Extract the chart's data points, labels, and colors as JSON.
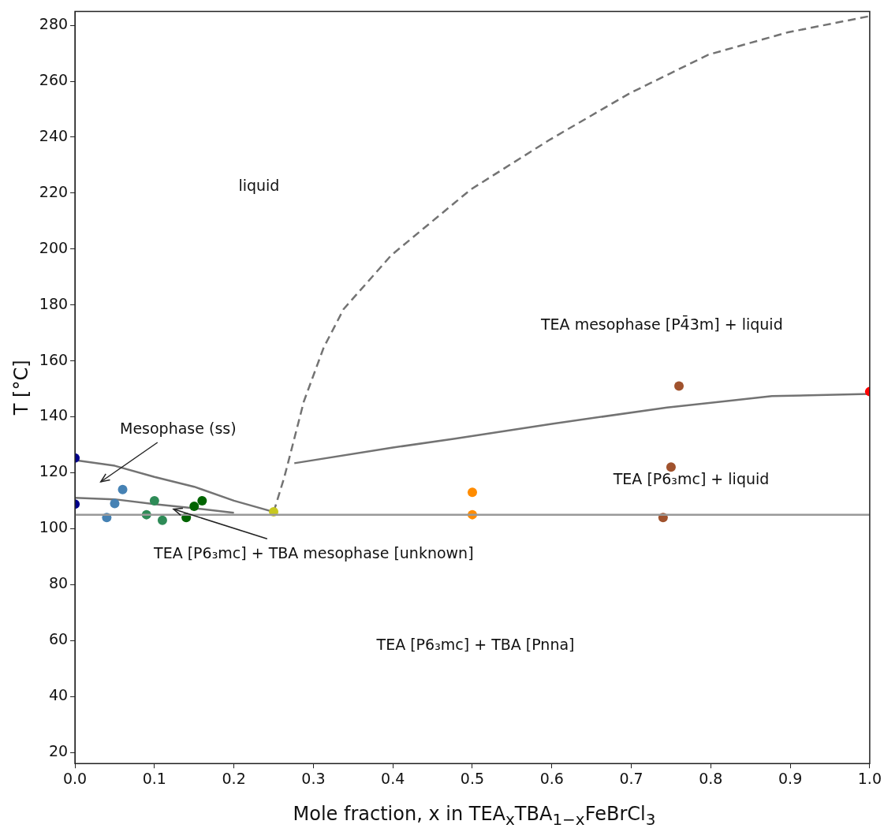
{
  "chart_data": {
    "type": "scatter",
    "xlabel": "Mole fraction, x in TEA$_{x}$TBA$_{1−x}$FeBrCl$_{3}$",
    "ylabel": "T [°C]",
    "xlim": [
      0,
      1
    ],
    "ylim": [
      16,
      285
    ],
    "xticks": [
      {
        "value": 0,
        "label": "0.0"
      },
      {
        "value": 0.1,
        "label": "0.1"
      },
      {
        "value": 0.2,
        "label": "0.2"
      },
      {
        "value": 0.3,
        "label": "0.3"
      },
      {
        "value": 0.4,
        "label": "0.4"
      },
      {
        "value": 0.5,
        "label": "0.5"
      },
      {
        "value": 0.6,
        "label": "0.6"
      },
      {
        "value": 0.7,
        "label": "0.7"
      },
      {
        "value": 0.8,
        "label": "0.8"
      },
      {
        "value": 0.9,
        "label": "0.9"
      },
      {
        "value": 1,
        "label": "1.0"
      }
    ],
    "yticks": [
      20,
      40,
      60,
      80,
      100,
      120,
      140,
      160,
      180,
      200,
      220,
      240,
      260,
      280
    ],
    "grid": false,
    "legend": false,
    "series": [
      {
        "marker": "circle",
        "x": [
          0,
          0,
          0.04,
          0.05,
          0.06,
          0.09,
          0.1,
          0.11,
          0.14,
          0.15,
          0.16,
          0.25,
          0.5,
          0.5,
          0.76,
          0.75,
          0.74,
          1.0
        ],
        "values": [
          125.3,
          108.8,
          104,
          109,
          114,
          105,
          110,
          103,
          104,
          108,
          110,
          106,
          113,
          105,
          151,
          122,
          104,
          149
        ],
        "colors": [
          "#00008b",
          "#00008b",
          "#4682b4",
          "#4682b4",
          "#4682b4",
          "#2e8b57",
          "#2e8b57",
          "#2e8b57",
          "#006400",
          "#006400",
          "#006400",
          "#c8c81e",
          "#ff8c00",
          "#ff8c00",
          "#a0522d",
          "#a0522d",
          "#a0522d",
          "#ff0000"
        ]
      },
      {
        "type": "line",
        "marker": "none",
        "color": "#737373",
        "line_style": "solid",
        "x": [
          0,
          0.05,
          0.1,
          0.15,
          0.2,
          0.25
        ],
        "values": [
          124.5,
          122.5,
          118.5,
          115,
          110,
          106
        ]
      },
      {
        "type": "line",
        "marker": "none",
        "color": "#737373",
        "line_style": "solid",
        "x": [
          0,
          0.05,
          0.1,
          0.15,
          0.2
        ],
        "values": [
          111,
          110.5,
          108.8,
          107.3,
          105.7
        ]
      },
      {
        "type": "line",
        "marker": "none",
        "color": "#737373",
        "line_style": "dashed",
        "x": [
          0.25,
          0.263,
          0.268,
          0.288,
          0.313,
          0.338,
          0.398,
          0.498,
          0.598,
          0.698,
          0.797,
          0.897,
          1.0
        ],
        "values": [
          106,
          118,
          123.4,
          145.5,
          164.8,
          178.5,
          197.8,
          221.3,
          239.2,
          255.7,
          269.5,
          277.5,
          283.3
        ]
      },
      {
        "type": "line",
        "marker": "none",
        "color": "#737373",
        "line_style": "solid",
        "x": [
          0.276,
          0.4,
          0.478,
          0.6,
          0.745,
          0.877,
          1.0
        ],
        "values": [
          123.4,
          129,
          132.2,
          137.5,
          143.3,
          147.4,
          148.2
        ]
      }
    ],
    "ref_lines": [
      {
        "axis": "y",
        "value": 105,
        "label": null,
        "color": "#999999",
        "line_style": "solid"
      }
    ],
    "annotations": [
      "liquid",
      "TEA mesophase [P4̄3m] + liquid",
      "TEA [P6₃mc] + liquid",
      "TEA [P6₃mc] + TBA [Pnna]",
      "Mesophase (ss)",
      {
        "text": "TEA [P6₃mc] + TBA mesophase [unknown]",
        "x": 0.124,
        "y": 107
      }
    ]
  }
}
